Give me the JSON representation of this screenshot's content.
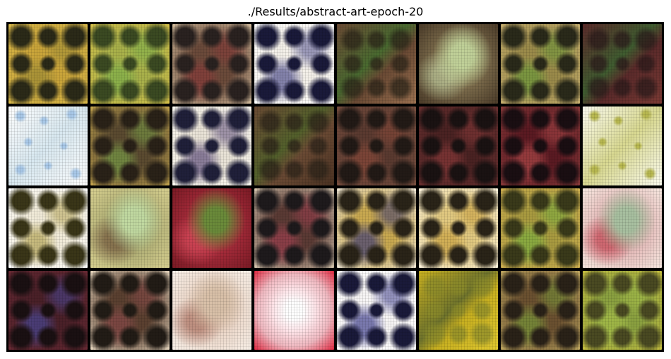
{
  "title": "./Results/abstract-art-epoch-20",
  "grid": {
    "rows": 4,
    "cols": 8,
    "tiles": [
      {
        "base": "#c9a43a",
        "edge": "#d9b94a",
        "spot": "#2b2a18",
        "tint": "#9a8a36",
        "style": "blots"
      },
      {
        "base": "#a8b04a",
        "edge": "#d8c24a",
        "spot": "#3b4a22",
        "tint": "#7db04a",
        "style": "blots"
      },
      {
        "base": "#6a4a3a",
        "edge": "#d6c0a0",
        "spot": "#2a2220",
        "tint": "#8a3a3a",
        "style": "blots"
      },
      {
        "base": "#f3efe8",
        "edge": "#ffffff",
        "spot": "#1a1a3a",
        "tint": "#4a4a8a",
        "style": "blots"
      },
      {
        "base": "#6a4a34",
        "edge": "#9a7050",
        "spot": "#2a2418",
        "tint": "#7ab050",
        "style": "wash"
      },
      {
        "base": "#8a7a56",
        "edge": "#4a3a28",
        "spot": "#c8d8a8",
        "tint": "#c0d098",
        "style": "glow"
      },
      {
        "base": "#9a8a4a",
        "edge": "#c8b070",
        "spot": "#2a2a1a",
        "tint": "#6a9a3a",
        "style": "blots"
      },
      {
        "base": "#5a2a2a",
        "edge": "#7a3a34",
        "spot": "#2a1a1a",
        "tint": "#6a9a50",
        "style": "wash"
      },
      {
        "base": "#fcfcfc",
        "edge": "#ffffff",
        "spot": "#a8c8e8",
        "tint": "#d8e8f0",
        "style": "sparse"
      },
      {
        "base": "#5a4a30",
        "edge": "#c8a850",
        "spot": "#2a2218",
        "tint": "#7aa048",
        "style": "blots"
      },
      {
        "base": "#e8e2d6",
        "edge": "#fffdf6",
        "spot": "#20203a",
        "tint": "#5a4a7a",
        "style": "blots"
      },
      {
        "base": "#6a4a34",
        "edge": "#4a3222",
        "spot": "#2a2218",
        "tint": "#8aa048",
        "style": "wash"
      },
      {
        "base": "#5a3a30",
        "edge": "#7a5040",
        "spot": "#221a16",
        "tint": "#8a4a3a",
        "style": "blots"
      },
      {
        "base": "#4a2222",
        "edge": "#6a3030",
        "spot": "#1a1212",
        "tint": "#8a3a3a",
        "style": "blots"
      },
      {
        "base": "#5a1a22",
        "edge": "#8a3a3a",
        "spot": "#1a0e12",
        "tint": "#b04a4a",
        "style": "blots"
      },
      {
        "base": "#fafaee",
        "edge": "#ffffff",
        "spot": "#b8b850",
        "tint": "#d8d890",
        "style": "sparse"
      },
      {
        "base": "#f0ead8",
        "edge": "#ffffff",
        "spot": "#3a3618",
        "tint": "#b0a050",
        "style": "blots"
      },
      {
        "base": "#a8a870",
        "edge": "#d8d090",
        "spot": "#6a4a34",
        "tint": "#c0d8a0",
        "style": "glow"
      },
      {
        "base": "#b03040",
        "edge": "#7a1a24",
        "spot": "#e05060",
        "tint": "#6a8a3a",
        "style": "glow"
      },
      {
        "base": "#5a3a34",
        "edge": "#d8c8b0",
        "spot": "#1e1a1c",
        "tint": "#a04050",
        "style": "blots"
      },
      {
        "base": "#c8a850",
        "edge": "#f0e8d8",
        "spot": "#2a2418",
        "tint": "#3a3a7a",
        "style": "blots"
      },
      {
        "base": "#e0c880",
        "edge": "#fff6e0",
        "spot": "#2a2418",
        "tint": "#c8a040",
        "style": "blots"
      },
      {
        "base": "#a89a40",
        "edge": "#d0b050",
        "spot": "#3a3a1a",
        "tint": "#7ab040",
        "style": "blots"
      },
      {
        "base": "#e0b0b0",
        "edge": "#f6e8e0",
        "spot": "#c03040",
        "tint": "#a8c0a0",
        "style": "glow"
      },
      {
        "base": "#4a2028",
        "edge": "#6a2a34",
        "spot": "#1a1012",
        "tint": "#4a4a9a",
        "style": "blots"
      },
      {
        "base": "#5a4030",
        "edge": "#e8d8c0",
        "spot": "#221c16",
        "tint": "#8a4a4a",
        "style": "blots"
      },
      {
        "base": "#e8d0c0",
        "edge": "#f8f0e8",
        "spot": "#a06050",
        "tint": "#d8c0a8",
        "style": "glow"
      },
      {
        "base": "#f0b8c0",
        "edge": "#e02840",
        "spot": "#ffe8ec",
        "tint": "#ffffff",
        "style": "center"
      },
      {
        "base": "#f6f4f4",
        "edge": "#ffffff",
        "spot": "#1a1a3a",
        "tint": "#3a3a8a",
        "style": "blots"
      },
      {
        "base": "#c8b020",
        "edge": "#e0c830",
        "spot": "#8a8a2a",
        "tint": "#b8c04a",
        "style": "wash"
      },
      {
        "base": "#6a5030",
        "edge": "#c0a860",
        "spot": "#2a2218",
        "tint": "#7a9a3a",
        "style": "blots"
      },
      {
        "base": "#8aa040",
        "edge": "#c8c040",
        "spot": "#4a4a22",
        "tint": "#a8c04a",
        "style": "blots"
      }
    ]
  }
}
